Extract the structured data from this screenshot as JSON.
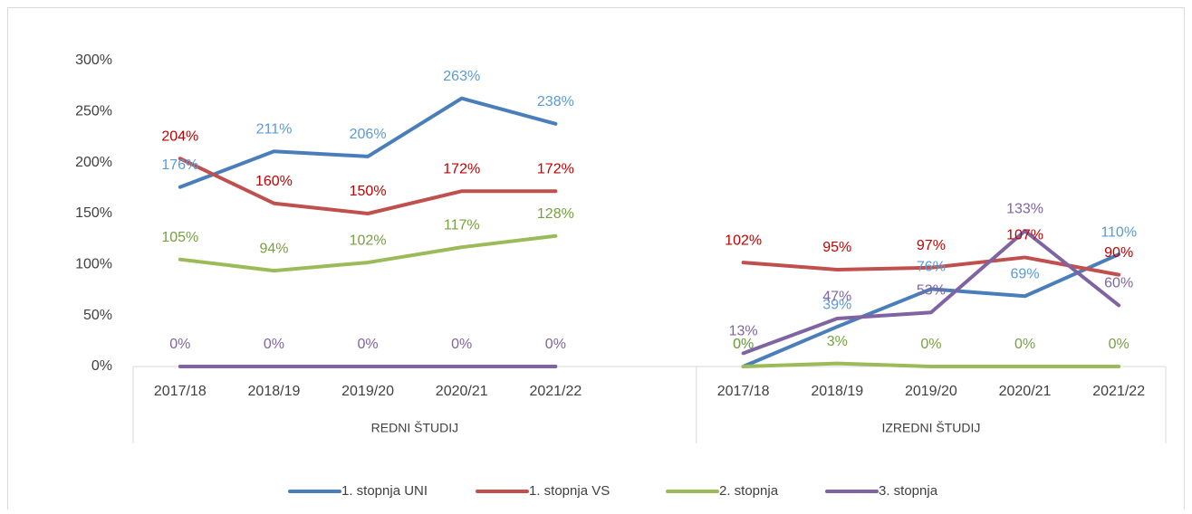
{
  "chart_data": {
    "type": "line",
    "categories": [
      "2017/18",
      "2018/19",
      "2019/20",
      "2020/21",
      "2021/22",
      null,
      "2017/18",
      "2018/19",
      "2019/20",
      "2020/21",
      "2021/22"
    ],
    "groups": [
      {
        "label": "REDNI ŠTUDIJ",
        "span": 6
      },
      {
        "label": "IZREDNI ŠTUDIJ",
        "span": 5
      }
    ],
    "series": [
      {
        "name": "1. stopnja UNI",
        "color": "#4a7ebb",
        "label_color": "#5b9bd5",
        "values": [
          176,
          211,
          206,
          263,
          238,
          null,
          0,
          39,
          76,
          69,
          110
        ],
        "value_labels": [
          "176%",
          "211%",
          "206%",
          "263%",
          "238%",
          null,
          "0%",
          "39%",
          "76%",
          "69%",
          "110%"
        ]
      },
      {
        "name": "1. stopnja VS",
        "color": "#c0504d",
        "label_color": "#c00000",
        "values": [
          204,
          160,
          150,
          172,
          172,
          null,
          102,
          95,
          97,
          107,
          90
        ],
        "value_labels": [
          "204%",
          "160%",
          "150%",
          "172%",
          "172%",
          null,
          "102%",
          "95%",
          "97%",
          "107%",
          "90%"
        ]
      },
      {
        "name": "2. stopnja",
        "color": "#9bbb59",
        "label_color": "#77a040",
        "values": [
          105,
          94,
          102,
          117,
          128,
          null,
          0,
          3,
          0,
          0,
          0
        ],
        "value_labels": [
          "105%",
          "94%",
          "102%",
          "117%",
          "128%",
          null,
          "0%",
          "3%",
          "0%",
          "0%",
          "0%"
        ]
      },
      {
        "name": "3. stopnja",
        "color": "#8064a2",
        "label_color": "#8064a2",
        "values": [
          0,
          0,
          0,
          0,
          0,
          null,
          13,
          47,
          53,
          133,
          60
        ],
        "value_labels": [
          "0%",
          "0%",
          "0%",
          "0%",
          "0%",
          null,
          "13%",
          "47%",
          "53%",
          "133%",
          "60%"
        ]
      }
    ],
    "ylim": [
      0,
      300
    ],
    "yticks": [
      {
        "value": 0,
        "label": "0%"
      },
      {
        "value": 50,
        "label": "50%"
      },
      {
        "value": 100,
        "label": "100%"
      },
      {
        "value": 150,
        "label": "150%"
      },
      {
        "value": 200,
        "label": "200%"
      },
      {
        "value": 250,
        "label": "250%"
      },
      {
        "value": 300,
        "label": "300%"
      }
    ],
    "legend": "bottom"
  }
}
